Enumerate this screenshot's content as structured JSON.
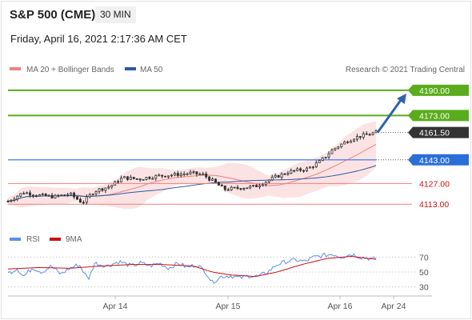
{
  "header": {
    "title": "S&P 500 (CME)",
    "timeframe": "30 MIN",
    "datetime": "Friday, April 16, 2021 2:17:36 AM CET"
  },
  "legend": {
    "bollinger": {
      "label": "MA 20 + Bollinger Bands",
      "color": "#f08080"
    },
    "ma50": {
      "label": "MA 50",
      "color": "#2a5aa5"
    }
  },
  "copyright": "Research © 2021 Trading Central",
  "colors": {
    "resistance": "#5aac1c",
    "support": "#f08080",
    "pivot": "#5b8ff0",
    "arrow": "#2f62ad",
    "candle": "#333333",
    "rsi": "#5b8ff0",
    "rsi_ma": "#cc1111",
    "current_label": "#333333"
  },
  "chart_data": [
    {
      "type": "candlestick",
      "title": "S&P 500 (CME)",
      "timeframe": "30 MIN",
      "x_ticks": [
        "Apr 14",
        "Apr 15",
        "Apr 16",
        "Apr 24"
      ],
      "ylim": [
        4105,
        4197
      ],
      "approx_close_path": [
        [
          0,
          4115
        ],
        [
          10,
          4121
        ],
        [
          20,
          4119
        ],
        [
          30,
          4118
        ],
        [
          40,
          4120
        ],
        [
          48,
          4114
        ],
        [
          56,
          4122
        ],
        [
          66,
          4125
        ],
        [
          74,
          4131
        ],
        [
          84,
          4130
        ],
        [
          96,
          4132
        ],
        [
          108,
          4133
        ],
        [
          118,
          4134
        ],
        [
          126,
          4133
        ],
        [
          132,
          4129
        ],
        [
          140,
          4123
        ],
        [
          150,
          4124
        ],
        [
          160,
          4125
        ],
        [
          172,
          4131
        ],
        [
          182,
          4135
        ],
        [
          194,
          4137
        ],
        [
          202,
          4142
        ],
        [
          210,
          4150
        ],
        [
          218,
          4155
        ],
        [
          224,
          4158
        ],
        [
          232,
          4160
        ],
        [
          238,
          4161.5
        ]
      ],
      "moving_averages": [
        {
          "name": "MA 20 + Bollinger Bands",
          "color": "#f08080"
        },
        {
          "name": "MA 50",
          "color": "#2a5aa5"
        }
      ],
      "levels": [
        {
          "value": 4190.0,
          "label": "4190.00",
          "kind": "target"
        },
        {
          "value": 4173.0,
          "label": "4173.00",
          "kind": "resistance"
        },
        {
          "value": 4161.5,
          "label": "4161.50",
          "kind": "current"
        },
        {
          "value": 4143.0,
          "label": "4143.00",
          "kind": "pivot"
        },
        {
          "value": 4127.0,
          "label": "4127.00",
          "kind": "support"
        },
        {
          "value": 4113.0,
          "label": "4113.00",
          "kind": "support"
        }
      ],
      "forecast": {
        "from": 4161.5,
        "to": 4190.0
      }
    },
    {
      "type": "line",
      "series": [
        {
          "name": "RSI",
          "color": "#5b8ff0"
        },
        {
          "name": "9MA",
          "color": "#cc1111"
        }
      ],
      "y_ticks": [
        70,
        50,
        30
      ],
      "ylim": [
        20,
        80
      ],
      "rsi_path": [
        [
          0,
          48
        ],
        [
          6,
          55
        ],
        [
          10,
          44
        ],
        [
          16,
          56
        ],
        [
          22,
          50
        ],
        [
          28,
          58
        ],
        [
          34,
          47
        ],
        [
          40,
          55
        ],
        [
          46,
          60
        ],
        [
          52,
          40
        ],
        [
          56,
          62
        ],
        [
          64,
          58
        ],
        [
          72,
          64
        ],
        [
          80,
          58
        ],
        [
          86,
          62
        ],
        [
          92,
          58
        ],
        [
          98,
          62
        ],
        [
          104,
          55
        ],
        [
          110,
          62
        ],
        [
          116,
          56
        ],
        [
          122,
          60
        ],
        [
          128,
          50
        ],
        [
          132,
          36
        ],
        [
          138,
          44
        ],
        [
          144,
          45
        ],
        [
          150,
          42
        ],
        [
          156,
          45
        ],
        [
          162,
          44
        ],
        [
          168,
          50
        ],
        [
          174,
          60
        ],
        [
          180,
          64
        ],
        [
          186,
          66
        ],
        [
          192,
          64
        ],
        [
          198,
          70
        ],
        [
          204,
          72
        ],
        [
          210,
          74
        ],
        [
          216,
          70
        ],
        [
          222,
          74
        ],
        [
          228,
          70
        ],
        [
          234,
          68
        ],
        [
          238,
          67
        ]
      ],
      "ma_path": [
        [
          0,
          54
        ],
        [
          20,
          56
        ],
        [
          40,
          55
        ],
        [
          60,
          58
        ],
        [
          80,
          60
        ],
        [
          100,
          60
        ],
        [
          120,
          58
        ],
        [
          132,
          50
        ],
        [
          144,
          46
        ],
        [
          160,
          44
        ],
        [
          174,
          50
        ],
        [
          190,
          60
        ],
        [
          206,
          68
        ],
        [
          222,
          71
        ],
        [
          238,
          67
        ]
      ]
    }
  ]
}
